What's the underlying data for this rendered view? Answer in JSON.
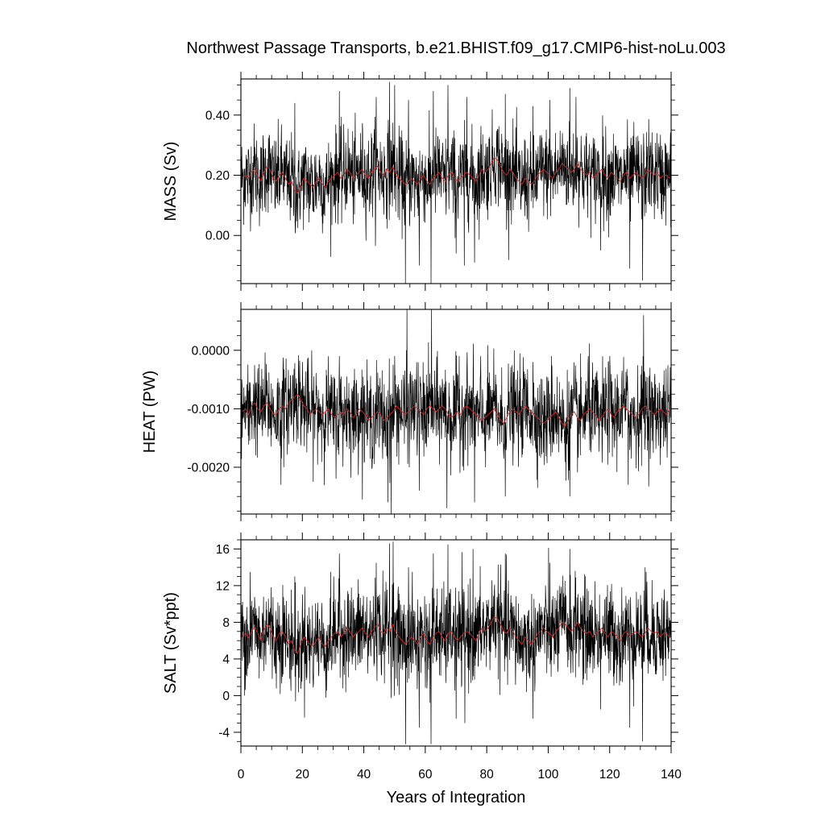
{
  "chart_data": {
    "type": "line",
    "title": "Northwest Passage Transports, b.e21.BHIST.f09_g17.CMIP6-hist-noLu.003",
    "xlabel": "Years of Integration",
    "xlim": [
      0,
      140
    ],
    "xticks": [
      0,
      20,
      40,
      60,
      80,
      100,
      120,
      140
    ],
    "xtick_labels": [
      "0",
      "20",
      "40",
      "60",
      "80",
      "100",
      "120",
      "140"
    ],
    "grid": false,
    "series_colors": {
      "monthly": "#000000",
      "annual": "#d62828"
    },
    "monthly_points_per_year": 12,
    "panels": [
      {
        "id": "mass",
        "ylabel": "MASS (Sv)",
        "ylim": [
          -0.16,
          0.52
        ],
        "yticks": [
          0.0,
          0.2,
          0.4
        ],
        "ytick_labels": [
          "0.00",
          "0.20",
          "0.40"
        ],
        "annual_mean_approx": [
          0.19,
          0.2,
          0.19,
          0.21,
          0.22,
          0.2,
          0.18,
          0.21,
          0.23,
          0.22,
          0.19,
          0.18,
          0.2,
          0.21,
          0.19,
          0.17,
          0.18,
          0.15,
          0.14,
          0.17,
          0.19,
          0.18,
          0.17,
          0.16,
          0.18,
          0.19,
          0.17,
          0.16,
          0.18,
          0.19,
          0.2,
          0.21,
          0.19,
          0.2,
          0.22,
          0.21,
          0.19,
          0.2,
          0.21,
          0.22,
          0.2,
          0.19,
          0.21,
          0.22,
          0.23,
          0.21,
          0.2,
          0.22,
          0.21,
          0.23,
          0.2,
          0.19,
          0.18,
          0.17,
          0.18,
          0.19,
          0.18,
          0.17,
          0.19,
          0.2,
          0.18,
          0.17,
          0.19,
          0.2,
          0.21,
          0.19,
          0.18,
          0.2,
          0.21,
          0.19,
          0.18,
          0.19,
          0.2,
          0.21,
          0.2,
          0.19,
          0.18,
          0.2,
          0.22,
          0.21,
          0.22,
          0.24,
          0.26,
          0.25,
          0.23,
          0.21,
          0.2,
          0.22,
          0.21,
          0.19,
          0.18,
          0.17,
          0.19,
          0.18,
          0.17,
          0.18,
          0.2,
          0.21,
          0.22,
          0.21,
          0.2,
          0.19,
          0.21,
          0.22,
          0.24,
          0.23,
          0.22,
          0.21,
          0.22,
          0.24,
          0.22,
          0.21,
          0.2,
          0.21,
          0.19,
          0.2,
          0.21,
          0.22,
          0.2,
          0.19,
          0.21,
          0.2,
          0.19,
          0.18,
          0.2,
          0.21,
          0.19,
          0.2,
          0.21,
          0.2,
          0.19,
          0.2,
          0.22,
          0.21,
          0.2,
          0.21,
          0.19,
          0.2,
          0.2,
          0.19
        ],
        "monthly_spread": 0.075,
        "extremes": [
          [
            17.5,
            0.44
          ],
          [
            32,
            0.48
          ],
          [
            44,
            0.46
          ],
          [
            48.3,
            0.51
          ],
          [
            50,
            0.5
          ],
          [
            53.5,
            -0.16
          ],
          [
            54.5,
            0.45
          ],
          [
            58,
            -0.1
          ],
          [
            61.8,
            -0.16
          ],
          [
            62.6,
            0.48
          ],
          [
            67.3,
            0.5
          ],
          [
            70,
            -0.06
          ],
          [
            72.7,
            -0.1
          ],
          [
            73.5,
            0.46
          ],
          [
            76,
            -0.09
          ],
          [
            86,
            0.47
          ],
          [
            95,
            0.43
          ],
          [
            100.5,
            0.45
          ],
          [
            107,
            0.49
          ],
          [
            109,
            0.46
          ],
          [
            117,
            -0.05
          ],
          [
            126.5,
            -0.11
          ],
          [
            130.7,
            -0.15
          ]
        ]
      },
      {
        "id": "heat",
        "ylabel": "HEAT (PW)",
        "ylim": [
          -0.0028,
          0.0007
        ],
        "yticks": [
          -0.002,
          -0.001,
          0.0
        ],
        "ytick_labels": [
          "-0.0020",
          "-0.0010",
          "0.0000"
        ],
        "annual_mean_approx": [
          -0.00105,
          -0.001,
          -0.0011,
          -0.00095,
          -0.0009,
          -0.001,
          -0.00105,
          -0.00095,
          -0.0009,
          -0.001,
          -0.00108,
          -0.0011,
          -0.001,
          -0.00095,
          -0.001,
          -0.0009,
          -0.00085,
          -0.0008,
          -0.00075,
          -0.00085,
          -0.00095,
          -0.001,
          -0.0011,
          -0.00105,
          -0.001,
          -0.00105,
          -0.0011,
          -0.00105,
          -0.001,
          -0.0011,
          -0.00115,
          -0.0011,
          -0.00105,
          -0.0011,
          -0.001,
          -0.00105,
          -0.00115,
          -0.0011,
          -0.001,
          -0.00105,
          -0.0011,
          -0.0012,
          -0.00115,
          -0.0011,
          -0.00105,
          -0.0011,
          -0.0012,
          -0.00115,
          -0.0011,
          -0.00105,
          -0.00095,
          -0.001,
          -0.00105,
          -0.0011,
          -0.00105,
          -0.001,
          -0.00095,
          -0.001,
          -0.00105,
          -0.0011,
          -0.001,
          -0.00095,
          -0.001,
          -0.00105,
          -0.001,
          -0.00095,
          -0.001,
          -0.0011,
          -0.00115,
          -0.0011,
          -0.00105,
          -0.0011,
          -0.001,
          -0.00095,
          -0.001,
          -0.00105,
          -0.0011,
          -0.00115,
          -0.0012,
          -0.00115,
          -0.0011,
          -0.00105,
          -0.001,
          -0.0011,
          -0.0012,
          -0.00125,
          -0.00115,
          -0.00105,
          -0.001,
          -0.00105,
          -0.0011,
          -0.001,
          -0.00095,
          -0.001,
          -0.00105,
          -0.0011,
          -0.00115,
          -0.0012,
          -0.00125,
          -0.0012,
          -0.00115,
          -0.0011,
          -0.00105,
          -0.00115,
          -0.00125,
          -0.0013,
          -0.0012,
          -0.0011,
          -0.00105,
          -0.00115,
          -0.0012,
          -0.0011,
          -0.00105,
          -0.001,
          -0.00105,
          -0.0011,
          -0.0012,
          -0.00115,
          -0.00105,
          -0.001,
          -0.0011,
          -0.00115,
          -0.00105,
          -0.001,
          -0.00095,
          -0.001,
          -0.00105,
          -0.0011,
          -0.00115,
          -0.0011,
          -0.001,
          -0.00095,
          -0.001,
          -0.00105,
          -0.0011,
          -0.00105,
          -0.001,
          -0.00105,
          -0.0011,
          -0.001
        ],
        "monthly_spread": 0.0004,
        "extremes": [
          [
            13,
            -0.0023
          ],
          [
            20,
            -0.0002
          ],
          [
            32,
            -0.0001
          ],
          [
            47.8,
            -0.0026
          ],
          [
            48.8,
            -0.0028
          ],
          [
            50,
            -0.0001
          ],
          [
            54,
            0.0007
          ],
          [
            58,
            -0.0024
          ],
          [
            62,
            0.0007
          ],
          [
            67,
            -0.0027
          ],
          [
            71,
            -0.0001
          ],
          [
            76,
            -0.0026
          ],
          [
            78,
            -0.0001
          ],
          [
            86,
            -0.0025
          ],
          [
            95,
            -0.0002
          ],
          [
            101,
            -0.0001
          ],
          [
            107,
            -0.0025
          ],
          [
            113,
            -0.0001
          ],
          [
            120,
            -0.0001
          ],
          [
            126,
            -0.0023
          ],
          [
            131,
            0.0006
          ]
        ]
      },
      {
        "id": "salt",
        "ylabel": "SALT (Sv*ppt)",
        "ylim": [
          -5.5,
          17.0
        ],
        "yticks": [
          -4,
          0,
          4,
          8,
          12,
          16
        ],
        "ytick_labels": [
          "-4",
          "0",
          "4",
          "8",
          "12",
          "16"
        ],
        "annual_mean_approx": [
          6.4,
          6.8,
          6.3,
          7.0,
          7.5,
          6.8,
          6.0,
          7.2,
          7.8,
          7.4,
          6.4,
          6.0,
          6.8,
          7.0,
          6.4,
          5.6,
          6.0,
          5.0,
          4.6,
          5.6,
          6.4,
          6.0,
          5.6,
          5.4,
          6.0,
          6.4,
          5.6,
          5.4,
          6.0,
          6.4,
          6.8,
          7.0,
          6.4,
          6.8,
          7.4,
          7.0,
          6.4,
          6.8,
          7.0,
          7.4,
          6.8,
          6.4,
          7.0,
          7.4,
          7.8,
          7.0,
          6.8,
          7.4,
          7.0,
          7.8,
          6.8,
          6.4,
          6.0,
          5.6,
          6.0,
          6.4,
          6.0,
          5.6,
          6.4,
          6.8,
          6.0,
          5.6,
          6.4,
          6.8,
          7.0,
          6.4,
          6.0,
          6.8,
          7.0,
          6.4,
          6.0,
          6.4,
          6.8,
          7.0,
          6.8,
          6.4,
          6.0,
          6.8,
          7.4,
          7.0,
          7.4,
          8.0,
          8.6,
          8.4,
          7.8,
          7.0,
          6.8,
          7.4,
          7.0,
          6.4,
          6.0,
          5.6,
          6.4,
          6.0,
          5.6,
          6.0,
          6.8,
          7.0,
          7.4,
          7.0,
          6.8,
          6.4,
          7.0,
          7.4,
          8.0,
          7.8,
          7.4,
          7.0,
          7.4,
          8.0,
          7.4,
          7.0,
          6.8,
          7.0,
          6.4,
          6.8,
          7.0,
          7.4,
          6.8,
          6.4,
          7.0,
          6.8,
          6.4,
          6.0,
          6.8,
          7.0,
          6.4,
          6.8,
          7.0,
          6.8,
          6.4,
          6.8,
          7.4,
          7.0,
          6.8,
          7.0,
          6.4,
          6.8,
          6.8,
          6.4
        ],
        "monthly_spread": 2.6,
        "extremes": [
          [
            3,
            13.5
          ],
          [
            17.5,
            13.0
          ],
          [
            32,
            15.5
          ],
          [
            44,
            14.5
          ],
          [
            48.3,
            16.6
          ],
          [
            49.5,
            16.8
          ],
          [
            53.6,
            -5.3
          ],
          [
            54.5,
            14.0
          ],
          [
            58,
            -3.5
          ],
          [
            61.8,
            -5.3
          ],
          [
            62.6,
            15.5
          ],
          [
            67.3,
            16.5
          ],
          [
            70,
            -2.5
          ],
          [
            72.8,
            -3.0
          ],
          [
            75.5,
            16.0
          ],
          [
            86,
            15.5
          ],
          [
            95,
            -2.5
          ],
          [
            100.5,
            14.5
          ],
          [
            107,
            16.0
          ],
          [
            117,
            -1.5
          ],
          [
            126.5,
            -3.5
          ],
          [
            130.7,
            -5.0
          ],
          [
            131.5,
            14.0
          ]
        ]
      }
    ]
  }
}
